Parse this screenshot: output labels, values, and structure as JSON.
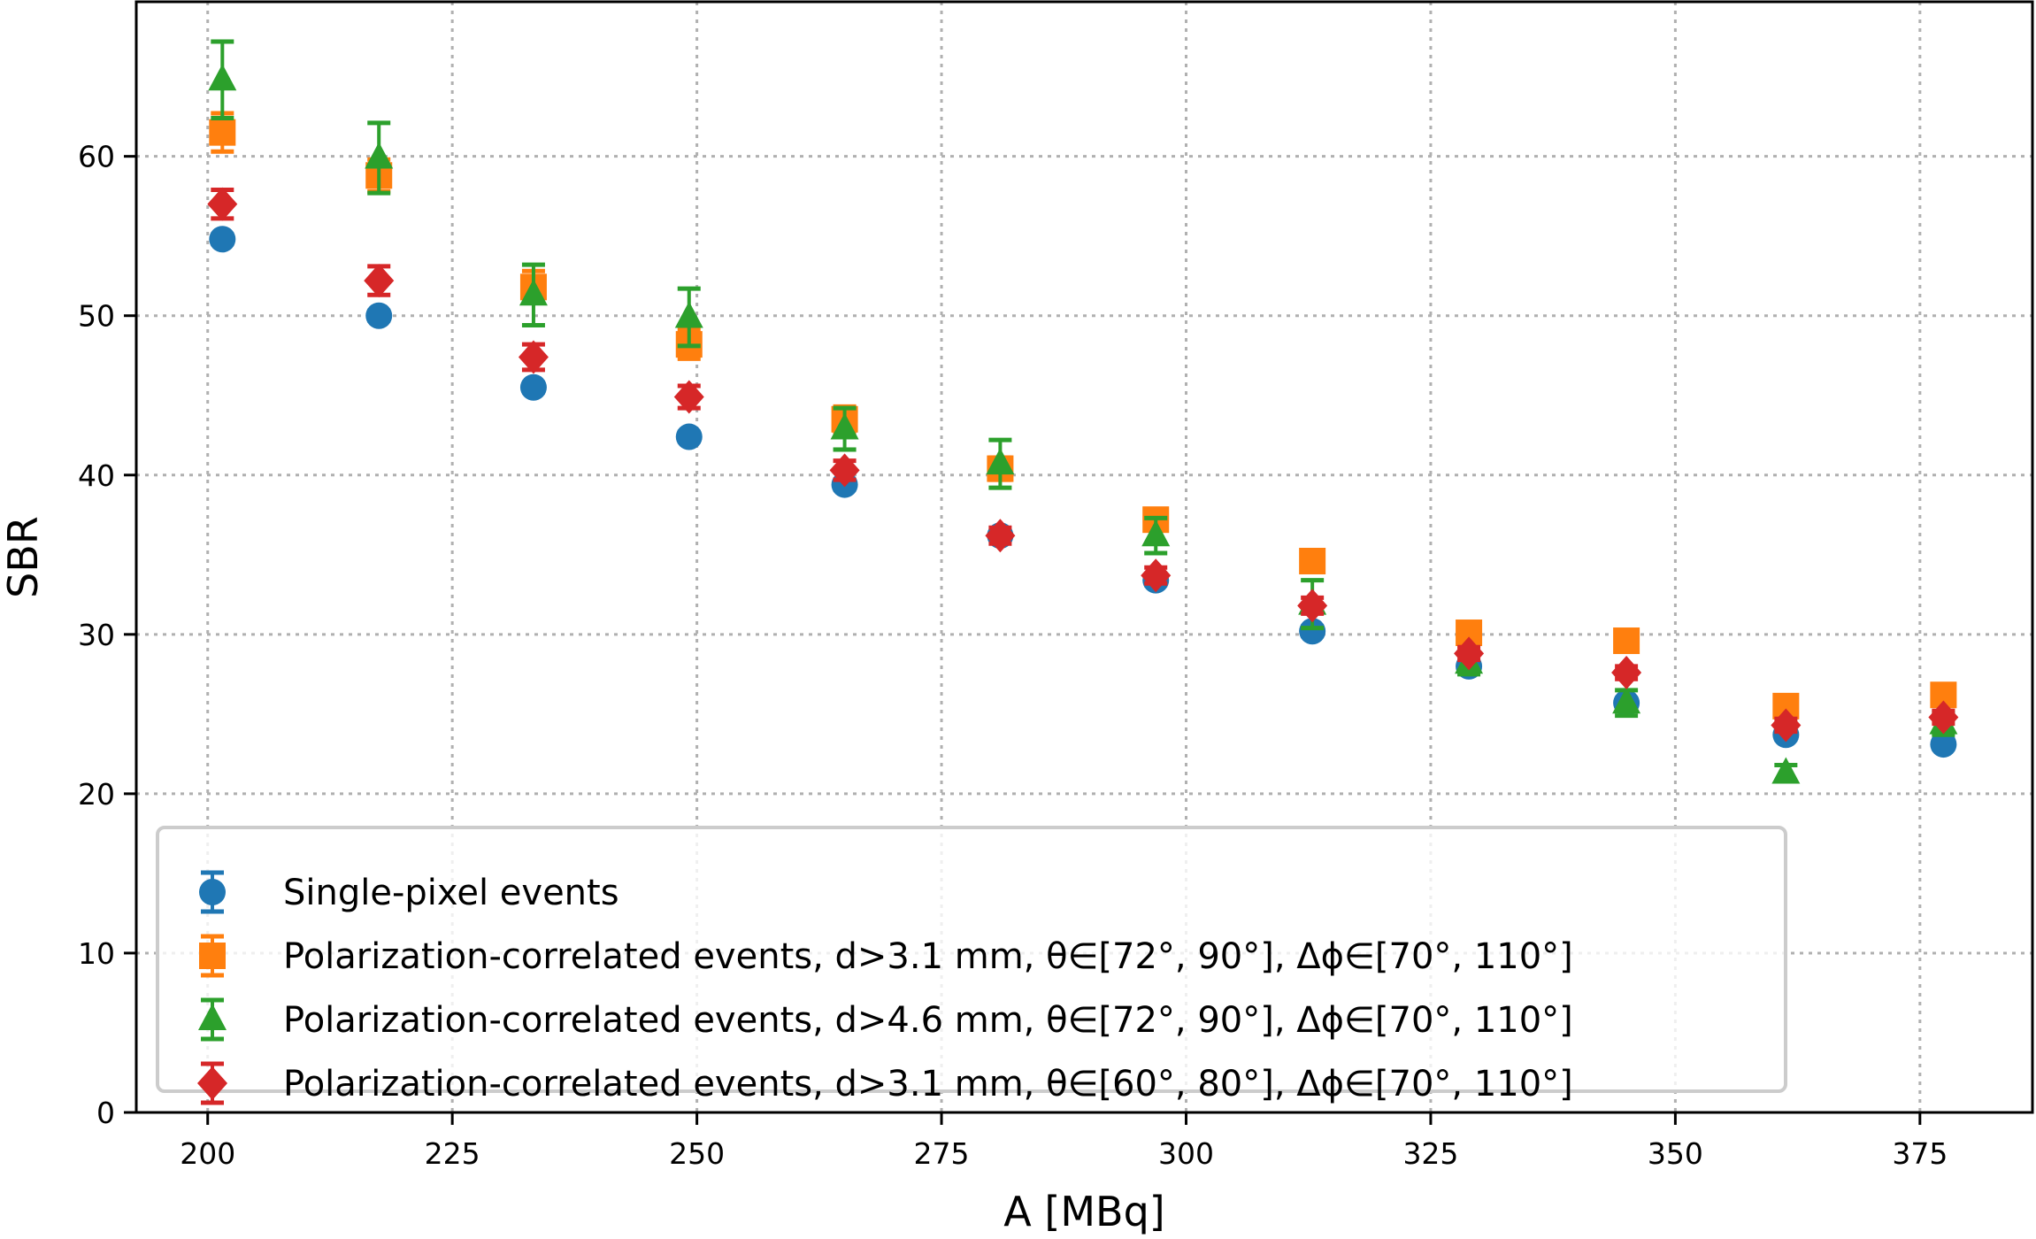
{
  "chart_data": {
    "type": "scatter",
    "title": "",
    "xlabel": "A [MBq]",
    "ylabel": "SBR",
    "xlim": [
      192.7,
      386.5
    ],
    "ylim": [
      0,
      69.7
    ],
    "xticks": [
      200,
      225,
      250,
      275,
      300,
      325,
      350,
      375
    ],
    "yticks": [
      0,
      10,
      20,
      30,
      40,
      50,
      60
    ],
    "grid": true,
    "legend_position": "lower-left",
    "series": [
      {
        "name": "Single-pixel events",
        "color": "#1f77b4",
        "marker": "circle",
        "x": [
          201.5,
          217.5,
          233.3,
          249.2,
          265.1,
          281.0,
          296.9,
          312.9,
          328.9,
          345.0,
          361.3,
          377.4
        ],
        "y": [
          54.8,
          50.0,
          45.5,
          42.4,
          39.4,
          36.2,
          33.4,
          30.2,
          28.0,
          25.7,
          23.7,
          23.1
        ],
        "err": [
          0.3,
          0.3,
          0.3,
          0.3,
          0.3,
          0.3,
          0.3,
          0.3,
          0.3,
          0.3,
          0.3,
          0.3
        ]
      },
      {
        "name": "Polarization-correlated events, d>3.1 mm, θ∈[72°, 90°], Δϕ∈[70°, 110°]",
        "color": "#ff7f0e",
        "marker": "square",
        "x": [
          201.5,
          217.5,
          233.3,
          249.2,
          265.1,
          281.0,
          296.9,
          312.9,
          328.9,
          345.0,
          361.3,
          377.4
        ],
        "y": [
          61.5,
          58.8,
          51.8,
          48.2,
          43.5,
          40.4,
          37.2,
          34.6,
          30.1,
          29.6,
          25.5,
          26.2
        ],
        "err": [
          1.2,
          1.0,
          1.0,
          0.9,
          0.8,
          0.7,
          0.6,
          0.6,
          0.5,
          0.5,
          0.5,
          0.5
        ]
      },
      {
        "name": "Polarization-correlated events, d>4.6 mm, θ∈[72°, 90°], Δϕ∈[70°, 110°]",
        "color": "#2ca02c",
        "marker": "triangle",
        "x": [
          201.5,
          217.5,
          233.3,
          249.2,
          265.1,
          281.0,
          296.9,
          312.9,
          328.9,
          345.0,
          361.3,
          377.4
        ],
        "y": [
          64.8,
          59.9,
          51.3,
          49.9,
          42.9,
          40.7,
          36.2,
          31.9,
          28.2,
          25.7,
          21.3,
          24.4
        ],
        "err": [
          2.4,
          2.2,
          1.9,
          1.8,
          1.3,
          1.5,
          1.1,
          1.5,
          0.7,
          0.8,
          0.5,
          0.7
        ]
      },
      {
        "name": "Polarization-correlated events, d>3.1 mm, θ∈[60°, 80°], Δϕ∈[70°, 110°]",
        "color": "#d62728",
        "marker": "diamond",
        "x": [
          201.5,
          217.5,
          233.3,
          249.2,
          265.1,
          281.0,
          296.9,
          312.9,
          328.9,
          345.0,
          361.3,
          377.4
        ],
        "y": [
          57.0,
          52.2,
          47.4,
          44.9,
          40.3,
          36.2,
          33.7,
          31.8,
          28.8,
          27.6,
          24.3,
          24.8
        ],
        "err": [
          0.9,
          0.9,
          0.8,
          0.7,
          0.6,
          0.5,
          0.5,
          0.5,
          0.4,
          0.4,
          0.4,
          0.4
        ]
      }
    ]
  }
}
